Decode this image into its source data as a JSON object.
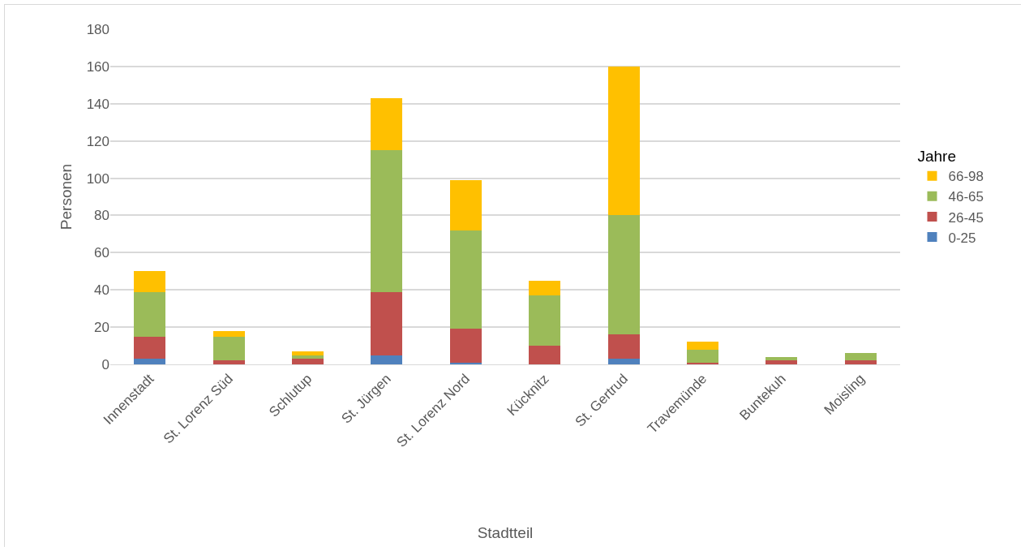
{
  "chart_data": {
    "type": "bar",
    "stacked": true,
    "xlabel": "Stadtteil",
    "ylabel": "Personen",
    "legend_title": "Jahre",
    "legend": "right",
    "grid": "y",
    "categories": [
      "Innenstadt",
      "St. Lorenz Süd",
      "Schlutup",
      "St. Jürgen",
      "St. Lorenz Nord",
      "Kücknitz",
      "St. Gertrud",
      "Travemünde",
      "Buntekuh",
      "Moisling"
    ],
    "ylim": [
      0,
      180
    ],
    "yticks": [
      0,
      20,
      40,
      60,
      80,
      100,
      120,
      140,
      160,
      180
    ],
    "series": [
      {
        "name": "0-25",
        "color": "#4f81bd",
        "values": [
          3,
          0,
          0,
          5,
          1,
          0,
          3,
          0,
          0,
          0
        ]
      },
      {
        "name": "26-45",
        "color": "#c0504d",
        "values": [
          12,
          2,
          3,
          34,
          18,
          10,
          13,
          1,
          2,
          2
        ]
      },
      {
        "name": "46-65",
        "color": "#9bbb59",
        "values": [
          24,
          13,
          2,
          76,
          53,
          27,
          64,
          7,
          2,
          4
        ]
      },
      {
        "name": "66-98",
        "color": "#ffc000",
        "values": [
          11,
          3,
          2,
          28,
          27,
          8,
          80,
          4,
          0,
          0
        ]
      }
    ]
  }
}
